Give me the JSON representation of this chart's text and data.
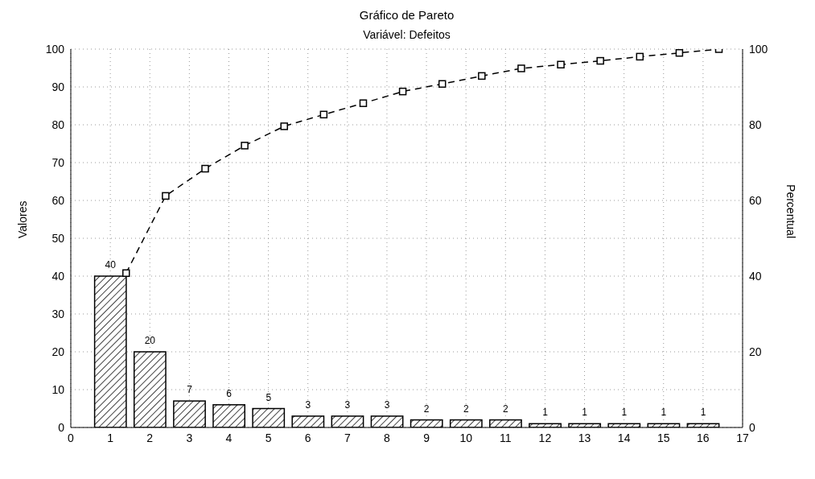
{
  "chart_data": {
    "type": "bar",
    "title": "Gráfico de Pareto",
    "subtitle": "Variável: Defeitos",
    "ylabel": "Valores",
    "y2label": "Percentual",
    "x": [
      1,
      2,
      3,
      4,
      5,
      6,
      7,
      8,
      9,
      10,
      11,
      12,
      13,
      14,
      15,
      16
    ],
    "series": [
      {
        "color": "#000000",
        "values": [
          40,
          20,
          7,
          6,
          5,
          3,
          3,
          3,
          2,
          2,
          2,
          1,
          1,
          1,
          1,
          1
        ],
        "value_labels": [
          "40",
          "20",
          "7",
          "6",
          "5",
          "3",
          "3",
          "3",
          "2",
          "2",
          "2",
          "1",
          "1",
          "1",
          "1",
          "1"
        ]
      },
      {
        "type": "line",
        "axis": "y2",
        "color": "#000000",
        "marker": "square",
        "line_style": "dashed",
        "x": [
          1.4,
          2.4,
          3.4,
          4.4,
          5.4,
          6.4,
          7.4,
          8.4,
          9.4,
          10.4,
          11.4,
          12.4,
          13.4,
          14.4,
          15.4,
          16.4
        ],
        "values": [
          40.8,
          61.2,
          68.4,
          74.5,
          79.6,
          82.7,
          85.7,
          88.8,
          90.8,
          92.9,
          94.9,
          95.9,
          96.9,
          98,
          99,
          100
        ]
      }
    ],
    "xlim": [
      0,
      17
    ],
    "xticks": [
      0,
      1,
      2,
      3,
      4,
      5,
      6,
      7,
      8,
      9,
      10,
      11,
      12,
      13,
      14,
      15,
      16,
      17
    ],
    "ylim": [
      0,
      100
    ],
    "yticks": [
      0,
      10,
      20,
      30,
      40,
      50,
      60,
      70,
      80,
      90,
      100
    ],
    "y2lim": [
      0,
      100
    ],
    "y2ticks": [
      0,
      20,
      40,
      60,
      80,
      100
    ],
    "grid": true
  }
}
